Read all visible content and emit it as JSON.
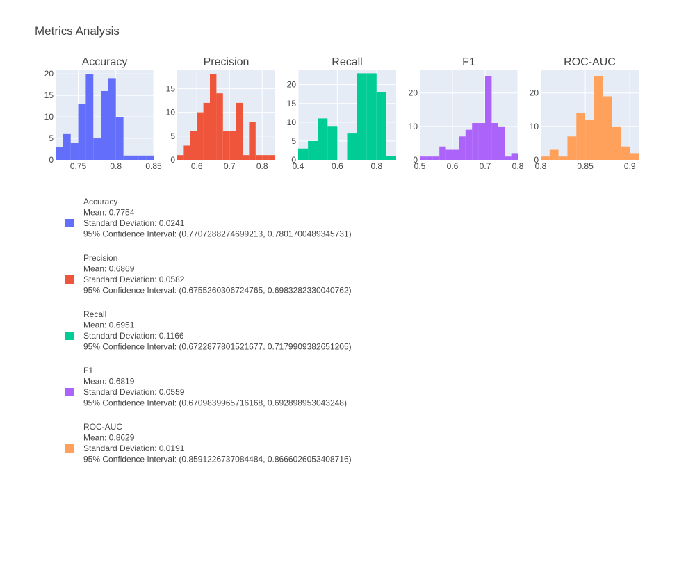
{
  "figure": {
    "title": "Metrics Analysis"
  },
  "colors": {
    "plot_background": "#E5ECF6",
    "grid": "#ffffff",
    "text": "#444444"
  },
  "chart_data": [
    {
      "type": "bar",
      "subtype": "histogram",
      "title": "Accuracy",
      "color": "#636EFA",
      "xlim": [
        0.72,
        0.85
      ],
      "ylim": [
        0,
        21
      ],
      "x_ticks": [
        "0.75",
        "0.8",
        "0.85"
      ],
      "x_tick_values": [
        0.75,
        0.8,
        0.85
      ],
      "y_ticks": [
        "0",
        "5",
        "10",
        "15",
        "20"
      ],
      "y_tick_values": [
        0,
        5,
        10,
        15,
        20
      ],
      "bin_start": 0.72,
      "bin_width": 0.01,
      "counts": [
        3,
        6,
        4,
        13,
        20,
        5,
        16,
        19,
        10,
        1,
        1,
        1,
        1
      ]
    },
    {
      "type": "bar",
      "subtype": "histogram",
      "title": "Precision",
      "color": "#EF553B",
      "xlim": [
        0.54,
        0.84
      ],
      "ylim": [
        0,
        19
      ],
      "x_ticks": [
        "0.6",
        "0.7",
        "0.8"
      ],
      "x_tick_values": [
        0.6,
        0.7,
        0.8
      ],
      "y_ticks": [
        "0",
        "5",
        "10",
        "15"
      ],
      "y_tick_values": [
        0,
        5,
        10,
        15
      ],
      "bin_start": 0.54,
      "bin_width": 0.02,
      "counts": [
        1,
        3,
        6,
        10,
        12,
        18,
        14,
        6,
        6,
        12,
        1,
        8,
        1,
        1,
        1
      ]
    },
    {
      "type": "bar",
      "subtype": "histogram",
      "title": "Recall",
      "color": "#00CC96",
      "xlim": [
        0.4,
        0.9
      ],
      "ylim": [
        0,
        24
      ],
      "x_ticks": [
        "0.4",
        "0.6",
        "0.8"
      ],
      "x_tick_values": [
        0.4,
        0.6,
        0.8
      ],
      "y_ticks": [
        "0",
        "5",
        "10",
        "15",
        "20"
      ],
      "y_tick_values": [
        0,
        5,
        10,
        15,
        20
      ],
      "bin_start": 0.4,
      "bin_width": 0.05,
      "counts": [
        3,
        5,
        11,
        9,
        0,
        7,
        23,
        23,
        18,
        1
      ]
    },
    {
      "type": "bar",
      "subtype": "histogram",
      "title": "F1",
      "color": "#AB63FA",
      "xlim": [
        0.5,
        0.8
      ],
      "ylim": [
        0,
        27
      ],
      "x_ticks": [
        "0.5",
        "0.6",
        "0.7",
        "0.8"
      ],
      "x_tick_values": [
        0.5,
        0.6,
        0.7,
        0.8
      ],
      "y_ticks": [
        "0",
        "10",
        "20"
      ],
      "y_tick_values": [
        0,
        10,
        20
      ],
      "bin_start": 0.5,
      "bin_width": 0.02,
      "counts": [
        1,
        1,
        1,
        4,
        3,
        3,
        7,
        9,
        11,
        11,
        25,
        11,
        10,
        1,
        2
      ]
    },
    {
      "type": "bar",
      "subtype": "histogram",
      "title": "ROC-AUC",
      "color": "#FFA15A",
      "xlim": [
        0.8,
        0.91
      ],
      "ylim": [
        0,
        27
      ],
      "x_ticks": [
        "0.8",
        "0.85",
        "0.9"
      ],
      "x_tick_values": [
        0.8,
        0.85,
        0.9
      ],
      "y_ticks": [
        "0",
        "10",
        "20"
      ],
      "y_tick_values": [
        0,
        10,
        20
      ],
      "bin_start": 0.8,
      "bin_width": 0.01,
      "counts": [
        1,
        3,
        1,
        7,
        14,
        12,
        25,
        19,
        10,
        4,
        2
      ]
    }
  ],
  "legend": {
    "placement": "bottom-left",
    "entries": [
      {
        "color": "#636EFA",
        "lines": [
          "Accuracy",
          "Mean: 0.7754",
          "Standard Deviation: 0.0241",
          "95% Confidence Interval: (0.770728827469921​3, 0.7801700489345731)"
        ]
      },
      {
        "color": "#EF553B",
        "lines": [
          "Precision",
          "Mean: 0.6869",
          "Standard Deviation: 0.0582",
          "95% Confidence Interval: (0.6755260306724765, 0.6983282330040762)"
        ]
      },
      {
        "color": "#00CC96",
        "lines": [
          "Recall",
          "Mean: 0.6951",
          "Standard Deviation: 0.1166",
          "95% Confidence Interval: (0.6722877801521677, 0.7179909382651205)"
        ]
      },
      {
        "color": "#AB63FA",
        "lines": [
          "F1",
          "Mean: 0.6819",
          "Standard Deviation: 0.0559",
          "95% Confidence Interval: (0.6709839965716168, 0.692898953043248)"
        ]
      },
      {
        "color": "#FFA15A",
        "lines": [
          "ROC-AUC",
          "Mean: 0.8629",
          "Standard Deviation: 0.0191",
          "95% Confidence Interval: (0.8591226737084484, 0.8666026053408716)"
        ]
      }
    ]
  }
}
